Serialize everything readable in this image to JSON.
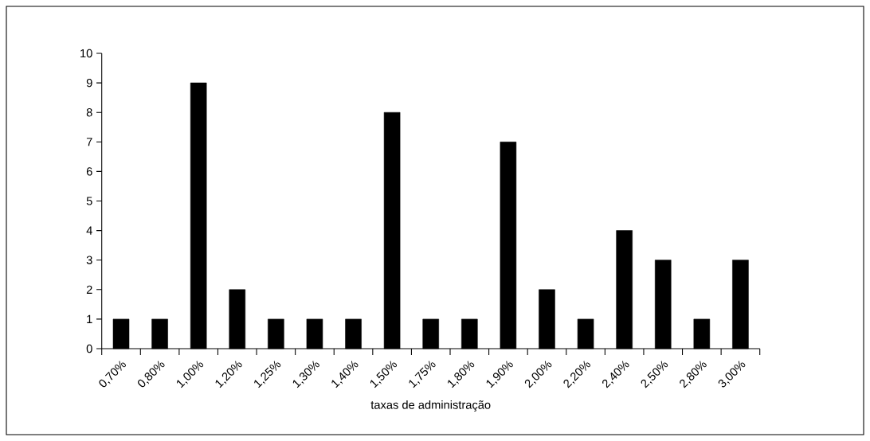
{
  "chart_data": {
    "type": "bar",
    "xlabel": "taxas de administração",
    "categories": [
      "0,70%",
      "0,80%",
      "1,00%",
      "1,20%",
      "1,25%",
      "1,30%",
      "1,40%",
      "1,50%",
      "1,75%",
      "1,80%",
      "1,90%",
      "2,00%",
      "2,20%",
      "2,40%",
      "2,50%",
      "2,80%",
      "3,00%"
    ],
    "values": [
      1,
      1,
      9,
      2,
      1,
      1,
      1,
      8,
      1,
      1,
      7,
      2,
      1,
      4,
      3,
      1,
      3
    ],
    "color": "#000000",
    "ylim": [
      0,
      10
    ],
    "yticks": [
      0,
      1,
      2,
      3,
      4,
      5,
      6,
      7,
      8,
      9,
      10
    ]
  }
}
